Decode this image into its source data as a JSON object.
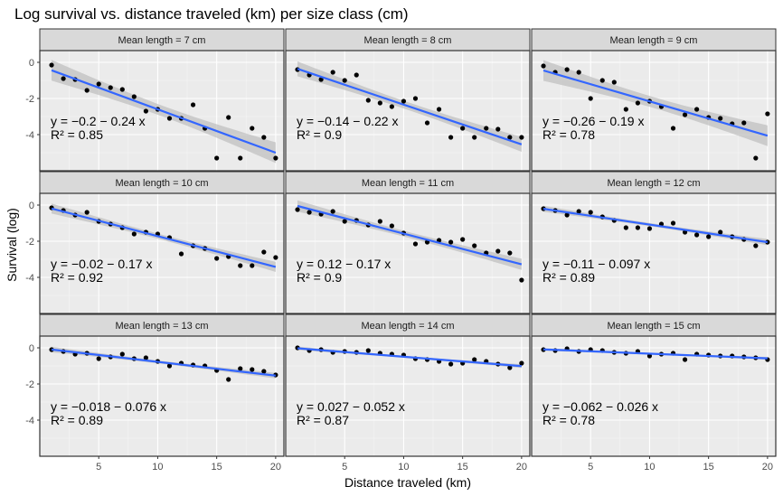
{
  "chart_data": {
    "type": "scatter",
    "title": "Log survival vs. distance traveled (km) per size class (cm)",
    "xlabel": "Distance traveled (km)",
    "ylabel": "Survival (log)",
    "xlim": [
      0,
      20.7
    ],
    "ylim": [
      -6,
      0.65
    ],
    "x_ticks": [
      5,
      10,
      15,
      20
    ],
    "y_ticks": [
      0,
      -2,
      -4
    ],
    "grid": true,
    "fit": "linear regression with 95% confidence band",
    "colors": {
      "panel_bg": "#ebebeb",
      "grid_major": "#ffffff",
      "strip_bg": "#d9d9d9",
      "points": "#000000",
      "fit_line": "#3366ff",
      "ribbon": "#bdbdbd"
    },
    "x": [
      1,
      2,
      3,
      4,
      5,
      6,
      7,
      8,
      9,
      10,
      11,
      12,
      13,
      14,
      15,
      16,
      17,
      18,
      19,
      20
    ],
    "panels": [
      {
        "strip": "Mean length = 7 cm",
        "equation_y": "y = −0.2 − 0.24 x",
        "equation_r2": "R² = 0.85",
        "intercept": -0.2,
        "slope": -0.24,
        "y": [
          -0.15,
          -0.9,
          -0.95,
          -1.55,
          -1.2,
          -1.4,
          -1.5,
          -1.9,
          -2.7,
          -2.6,
          -3.1,
          -3.1,
          -2.35,
          -3.65,
          -5.3,
          -3.05,
          -5.3,
          -3.65,
          -4.15,
          -5.3
        ]
      },
      {
        "strip": "Mean length = 8 cm",
        "equation_y": "y = −0.14 − 0.22 x",
        "equation_r2": "R² = 0.9",
        "intercept": -0.14,
        "slope": -0.22,
        "y": [
          -0.4,
          -0.7,
          -0.95,
          -0.55,
          -1.0,
          -0.7,
          -2.1,
          -2.25,
          -2.45,
          -2.15,
          -2.0,
          -3.35,
          -2.6,
          -4.15,
          -3.65,
          -4.15,
          -3.65,
          -3.7,
          -4.15,
          -4.15
        ]
      },
      {
        "strip": "Mean length = 9 cm",
        "equation_y": "y = −0.26 − 0.19 x",
        "equation_r2": "R² = 0.78",
        "intercept": -0.26,
        "slope": -0.19,
        "y": [
          -0.2,
          -0.55,
          -0.4,
          -0.55,
          -2.0,
          -1.0,
          -1.1,
          -2.6,
          -2.25,
          -2.15,
          -2.45,
          -3.65,
          -2.9,
          -2.6,
          -3.05,
          -3.1,
          -3.4,
          -3.35,
          -5.3,
          -2.85
        ]
      },
      {
        "strip": "Mean length = 10 cm",
        "equation_y": "y = −0.02 − 0.17 x",
        "equation_r2": "R² = 0.92",
        "intercept": -0.02,
        "slope": -0.17,
        "y": [
          -0.15,
          -0.3,
          -0.55,
          -0.4,
          -0.9,
          -1.05,
          -1.25,
          -1.6,
          -1.5,
          -1.6,
          -1.8,
          -2.7,
          -2.25,
          -2.4,
          -2.95,
          -2.85,
          -3.35,
          -3.35,
          -2.6,
          -2.9
        ]
      },
      {
        "strip": "Mean length = 11 cm",
        "equation_y": "y = 0.12 − 0.17 x",
        "equation_r2": "R² = 0.9",
        "intercept": 0.12,
        "slope": -0.17,
        "y": [
          -0.25,
          -0.4,
          -0.5,
          -0.35,
          -0.9,
          -0.85,
          -1.1,
          -0.9,
          -1.15,
          -1.55,
          -2.15,
          -2.05,
          -1.95,
          -2.05,
          -1.9,
          -2.25,
          -2.65,
          -2.55,
          -2.65,
          -4.15
        ]
      },
      {
        "strip": "Mean length = 12 cm",
        "equation_y": "y = −0.11 − 0.097 x",
        "equation_r2": "R² = 0.89",
        "intercept": -0.11,
        "slope": -0.097,
        "y": [
          -0.2,
          -0.3,
          -0.55,
          -0.35,
          -0.4,
          -0.65,
          -0.85,
          -1.25,
          -1.25,
          -1.3,
          -1.05,
          -1.0,
          -1.5,
          -1.65,
          -1.75,
          -1.5,
          -1.75,
          -1.9,
          -2.25,
          -2.05
        ]
      },
      {
        "strip": "Mean length = 13 cm",
        "equation_y": "y = −0.018 − 0.076 x",
        "equation_r2": "R² = 0.89",
        "intercept": -0.018,
        "slope": -0.076,
        "y": [
          -0.1,
          -0.2,
          -0.35,
          -0.3,
          -0.6,
          -0.5,
          -0.35,
          -0.6,
          -0.55,
          -0.75,
          -1.0,
          -0.85,
          -0.95,
          -1.0,
          -1.25,
          -1.75,
          -1.15,
          -1.2,
          -1.3,
          -1.5
        ]
      },
      {
        "strip": "Mean length = 14 cm",
        "equation_y": "y = 0.027 − 0.052 x",
        "equation_r2": "R² = 0.87",
        "intercept": 0.027,
        "slope": -0.052,
        "y": [
          0.0,
          -0.15,
          -0.1,
          -0.25,
          -0.2,
          -0.25,
          -0.15,
          -0.3,
          -0.35,
          -0.4,
          -0.6,
          -0.65,
          -0.75,
          -0.9,
          -0.85,
          -0.65,
          -0.75,
          -0.9,
          -1.1,
          -0.85
        ]
      },
      {
        "strip": "Mean length = 15 cm",
        "equation_y": "y = −0.062 − 0.026 x",
        "equation_r2": "R² = 0.78",
        "intercept": -0.062,
        "slope": -0.026,
        "y": [
          -0.1,
          -0.15,
          -0.05,
          -0.2,
          -0.1,
          -0.15,
          -0.25,
          -0.3,
          -0.2,
          -0.45,
          -0.35,
          -0.3,
          -0.65,
          -0.35,
          -0.4,
          -0.45,
          -0.45,
          -0.5,
          -0.55,
          -0.65
        ]
      }
    ]
  }
}
